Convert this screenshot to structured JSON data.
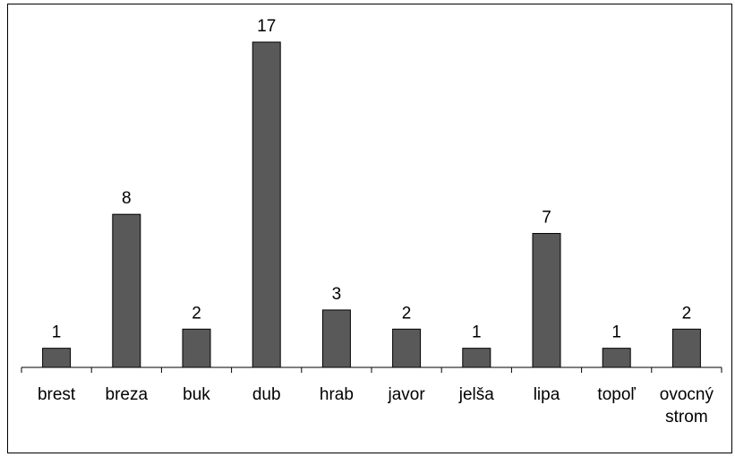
{
  "chart_data": {
    "type": "bar",
    "categories": [
      "brest",
      "breza",
      "buk",
      "dub",
      "hrab",
      "javor",
      "jelša",
      "lipa",
      "topoľ",
      [
        "ovocný",
        "strom"
      ]
    ],
    "values": [
      1,
      8,
      2,
      17,
      3,
      2,
      1,
      7,
      1,
      2
    ],
    "data_labels": [
      "1",
      "8",
      "2",
      "17",
      "3",
      "2",
      "1",
      "7",
      "1",
      "2"
    ],
    "title": "",
    "xlabel": "",
    "ylabel": "",
    "ylim": [
      0,
      17
    ],
    "grid": false,
    "legend": "none",
    "bar_color": "#595959"
  }
}
